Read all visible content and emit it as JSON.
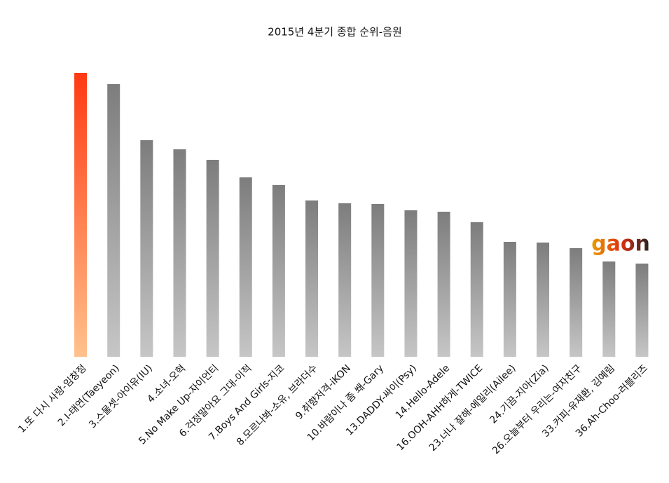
{
  "chart_data": {
    "type": "bar",
    "title": "2015년 4분기 종합 순위-음원",
    "logo": "gaon",
    "categories": [
      "1.또 다시 사랑-임창정",
      "2.I-태연(Taeyeon)",
      "3.스물셋-아이유(IU)",
      "4.소녀-오혁",
      "5.No Make Up-자이언티",
      "6.걱정말아요 그대-이적",
      "7.Boys And Girls-지코",
      "8.모르나봐-소유, 브라더수",
      "9.취향저격-iKON",
      "10.바람이나 좀 쐐-Gary",
      "13.DADDY-싸이(Psy)",
      "14.Hello-Adele",
      "16.OOH-AHH하게-TWICE",
      "23.너나 잘해-에일리(Ailee)",
      "24.기끔-지아(Zia)",
      "26.오늘부터 우리는-여자친구",
      "33.커피-유재환, 김예림",
      "36.Ah-Choo-러블리즈"
    ],
    "values": [
      405,
      389,
      309,
      296,
      281,
      256,
      245,
      223,
      219,
      218,
      209,
      207,
      192,
      164,
      163,
      155,
      136,
      133
    ],
    "ylim": [
      0,
      405
    ],
    "color": [
      "#7d7d7d",
      "#c6c6c6"
    ],
    "highlight_index": 0,
    "highlight_color": [
      "#ff3a12",
      "#ffc28c"
    ]
  }
}
